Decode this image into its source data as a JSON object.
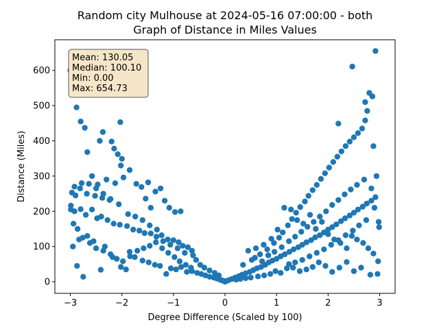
{
  "chart_data": {
    "type": "scatter",
    "title_line1": "Random city Mulhouse at 2024-05-16 07:00:00  - both",
    "title_line2": "Graph of Distance in Miles Values",
    "xlabel": "Degree Difference (Scaled by 100)",
    "ylabel": "Distance (Miles)",
    "xlim": [
      -3.3,
      3.3
    ],
    "ylim": [
      -33,
      687
    ],
    "x_ticks": [
      -3,
      -2,
      -1,
      0,
      1,
      2,
      3
    ],
    "y_ticks": [
      0,
      100,
      200,
      300,
      400,
      500,
      600
    ],
    "grid": false,
    "marker_color": "#1f77b4",
    "stats_box": {
      "location": "top-left",
      "lines": [
        "Mean: 130.05",
        "Median: 100.10",
        "Min: 0.00",
        "Max: 654.73"
      ],
      "face_color": "#f5e6c8",
      "edge_color": "#555555"
    },
    "points": [
      [
        -3.0,
        600
      ],
      [
        -2.88,
        495
      ],
      [
        -2.8,
        455
      ],
      [
        -2.72,
        437
      ],
      [
        -2.67,
        368
      ],
      [
        -2.43,
        400
      ],
      [
        -2.37,
        425
      ],
      [
        -2.2,
        398
      ],
      [
        -2.03,
        453
      ],
      [
        -2.15,
        378
      ],
      [
        -2.0,
        349
      ],
      [
        -2.02,
        330
      ],
      [
        -2.08,
        362
      ],
      [
        -1.85,
        317
      ],
      [
        -2.58,
        300
      ],
      [
        -2.47,
        276
      ],
      [
        -2.3,
        290
      ],
      [
        -2.13,
        280
      ],
      [
        -2.92,
        270
      ],
      [
        -2.81,
        265
      ],
      [
        -2.97,
        253
      ],
      [
        -2.68,
        250
      ],
      [
        -2.52,
        244
      ],
      [
        -2.38,
        238
      ],
      [
        -2.24,
        232
      ],
      [
        -1.97,
        296
      ],
      [
        -1.72,
        278
      ],
      [
        -1.62,
        269
      ],
      [
        -1.49,
        282
      ],
      [
        -1.54,
        236
      ],
      [
        -1.35,
        256
      ],
      [
        -1.25,
        265
      ],
      [
        -1.17,
        230
      ],
      [
        -1.44,
        210
      ],
      [
        -1.08,
        210
      ],
      [
        -0.97,
        198
      ],
      [
        -0.86,
        200
      ],
      [
        -2.99,
        216
      ],
      [
        -2.92,
        200
      ],
      [
        -2.8,
        206
      ],
      [
        -2.7,
        190
      ],
      [
        -2.58,
        205
      ],
      [
        -2.48,
        180
      ],
      [
        -2.4,
        185
      ],
      [
        -2.28,
        175
      ],
      [
        -2.16,
        165
      ],
      [
        -2.04,
        162
      ],
      [
        -1.9,
        158
      ],
      [
        -1.78,
        148
      ],
      [
        -1.66,
        145
      ],
      [
        -1.56,
        138
      ],
      [
        -1.44,
        137
      ],
      [
        -1.33,
        128
      ],
      [
        -1.23,
        132
      ],
      [
        -1.11,
        120
      ],
      [
        -1.0,
        118
      ],
      [
        -0.9,
        112
      ],
      [
        -0.82,
        102
      ],
      [
        -0.72,
        98
      ],
      [
        -0.64,
        88
      ],
      [
        -2.95,
        100
      ],
      [
        -2.87,
        45
      ],
      [
        -2.75,
        14
      ],
      [
        -2.83,
        120
      ],
      [
        -2.67,
        130
      ],
      [
        -2.55,
        115
      ],
      [
        -2.41,
        34
      ],
      [
        -2.33,
        100
      ],
      [
        -2.18,
        70
      ],
      [
        -2.02,
        42
      ],
      [
        -1.92,
        35
      ],
      [
        -1.85,
        85
      ],
      [
        -1.75,
        70
      ],
      [
        -1.6,
        60
      ],
      [
        -1.48,
        55
      ],
      [
        -1.36,
        48
      ],
      [
        -1.26,
        45
      ],
      [
        -1.14,
        22
      ],
      [
        -1.05,
        38
      ],
      [
        -0.95,
        35
      ],
      [
        -0.85,
        42
      ],
      [
        -0.74,
        28
      ],
      [
        -0.64,
        30
      ],
      [
        -0.54,
        25
      ],
      [
        -0.46,
        22
      ],
      [
        -0.38,
        18
      ],
      [
        -0.3,
        14
      ],
      [
        -0.22,
        12
      ],
      [
        -0.16,
        9
      ],
      [
        -0.1,
        6
      ],
      [
        -0.06,
        4
      ],
      [
        -0.02,
        2
      ],
      [
        0.0,
        0
      ],
      [
        0.03,
        2
      ],
      [
        0.08,
        5
      ],
      [
        0.14,
        8
      ],
      [
        0.2,
        12
      ],
      [
        0.27,
        16
      ],
      [
        0.33,
        20
      ],
      [
        0.4,
        24
      ],
      [
        0.48,
        28
      ],
      [
        0.55,
        33
      ],
      [
        0.62,
        38
      ],
      [
        0.7,
        42
      ],
      [
        0.78,
        48
      ],
      [
        0.85,
        55
      ],
      [
        0.92,
        60
      ],
      [
        1.0,
        65
      ],
      [
        1.08,
        72
      ],
      [
        1.16,
        78
      ],
      [
        1.25,
        85
      ],
      [
        1.33,
        92
      ],
      [
        1.42,
        98
      ],
      [
        1.5,
        105
      ],
      [
        1.58,
        112
      ],
      [
        1.67,
        118
      ],
      [
        1.75,
        126
      ],
      [
        1.84,
        132
      ],
      [
        1.92,
        140
      ],
      [
        2.0,
        148
      ],
      [
        2.08,
        155
      ],
      [
        2.16,
        163
      ],
      [
        2.25,
        172
      ],
      [
        2.33,
        180
      ],
      [
        2.42,
        188
      ],
      [
        2.5,
        196
      ],
      [
        2.58,
        205
      ],
      [
        2.67,
        213
      ],
      [
        2.75,
        222
      ],
      [
        2.84,
        230
      ],
      [
        2.92,
        240
      ],
      [
        0.35,
        48
      ],
      [
        0.52,
        62
      ],
      [
        0.68,
        78
      ],
      [
        0.82,
        92
      ],
      [
        0.95,
        110
      ],
      [
        1.05,
        125
      ],
      [
        1.12,
        140
      ],
      [
        1.22,
        160
      ],
      [
        1.3,
        178
      ],
      [
        1.38,
        196
      ],
      [
        1.46,
        212
      ],
      [
        1.55,
        228
      ],
      [
        1.62,
        244
      ],
      [
        1.7,
        260
      ],
      [
        1.78,
        275
      ],
      [
        1.86,
        292
      ],
      [
        1.94,
        308
      ],
      [
        2.02,
        324
      ],
      [
        2.1,
        340
      ],
      [
        2.18,
        355
      ],
      [
        2.26,
        370
      ],
      [
        2.34,
        385
      ],
      [
        2.42,
        398
      ],
      [
        2.5,
        410
      ],
      [
        2.58,
        422
      ],
      [
        2.66,
        435
      ],
      [
        2.72,
        458
      ],
      [
        2.76,
        485
      ],
      [
        2.8,
        536
      ],
      [
        2.86,
        526
      ],
      [
        2.92,
        655
      ],
      [
        2.47,
        611
      ],
      [
        2.72,
        510
      ],
      [
        2.2,
        449
      ],
      [
        2.88,
        385
      ],
      [
        2.94,
        300
      ],
      [
        2.98,
        170
      ],
      [
        2.99,
        155
      ],
      [
        2.97,
        58
      ],
      [
        2.96,
        22
      ],
      [
        2.82,
        20
      ],
      [
        2.64,
        40
      ],
      [
        2.5,
        30
      ],
      [
        2.36,
        56
      ],
      [
        2.22,
        40
      ],
      [
        2.08,
        28
      ],
      [
        1.95,
        45
      ],
      [
        1.82,
        55
      ],
      [
        1.7,
        42
      ],
      [
        1.58,
        35
      ],
      [
        1.45,
        30
      ],
      [
        1.32,
        40
      ],
      [
        1.2,
        38
      ],
      [
        1.08,
        25
      ],
      [
        0.98,
        30
      ],
      [
        0.88,
        22
      ],
      [
        0.76,
        18
      ],
      [
        0.64,
        15
      ],
      [
        0.5,
        12
      ],
      [
        0.4,
        10
      ],
      [
        0.3,
        8
      ],
      [
        0.22,
        6
      ],
      [
        0.6,
        95
      ],
      [
        0.75,
        105
      ],
      [
        0.9,
        122
      ],
      [
        1.02,
        148
      ],
      [
        1.15,
        210
      ],
      [
        1.28,
        205
      ],
      [
        1.4,
        175
      ],
      [
        1.52,
        165
      ],
      [
        1.65,
        190
      ],
      [
        1.76,
        150
      ],
      [
        1.88,
        170
      ],
      [
        2.0,
        135
      ],
      [
        2.12,
        120
      ],
      [
        2.24,
        110
      ],
      [
        2.36,
        95
      ],
      [
        2.46,
        130
      ],
      [
        2.56,
        120
      ],
      [
        2.68,
        110
      ],
      [
        2.78,
        95
      ],
      [
        2.88,
        80
      ],
      [
        -0.56,
        62
      ],
      [
        -0.48,
        48
      ],
      [
        -0.4,
        40
      ],
      [
        -0.3,
        32
      ],
      [
        -0.2,
        25
      ],
      [
        -0.12,
        18
      ],
      [
        -0.62,
        75
      ],
      [
        -0.78,
        82
      ],
      [
        -0.92,
        95
      ],
      [
        -1.06,
        105
      ],
      [
        -1.2,
        115
      ],
      [
        -1.32,
        148
      ],
      [
        -1.46,
        160
      ],
      [
        -1.6,
        175
      ],
      [
        -1.74,
        185
      ],
      [
        -1.88,
        192
      ],
      [
        -2.06,
        220
      ],
      [
        -2.22,
        235
      ],
      [
        -2.36,
        250
      ],
      [
        -2.5,
        265
      ],
      [
        -2.64,
        278
      ],
      [
        -2.78,
        280
      ],
      [
        -2.9,
        245
      ],
      [
        -2.99,
        205
      ],
      [
        -2.94,
        165
      ],
      [
        -2.86,
        150
      ],
      [
        -2.76,
        125
      ],
      [
        -2.62,
        110
      ],
      [
        -2.5,
        95
      ],
      [
        -2.36,
        88
      ],
      [
        -2.22,
        78
      ],
      [
        -2.1,
        65
      ],
      [
        -1.98,
        58
      ],
      [
        -1.84,
        72
      ],
      [
        -1.7,
        88
      ],
      [
        -1.58,
        95
      ],
      [
        -1.46,
        102
      ],
      [
        -1.34,
        112
      ],
      [
        -1.22,
        95
      ],
      [
        -1.1,
        82
      ],
      [
        -0.98,
        70
      ],
      [
        -0.88,
        58
      ],
      [
        -0.76,
        48
      ],
      [
        -0.66,
        40
      ],
      [
        0.45,
        88
      ],
      [
        0.58,
        68
      ],
      [
        0.72,
        58
      ],
      [
        0.84,
        75
      ],
      [
        0.96,
        85
      ],
      [
        1.1,
        98
      ],
      [
        1.24,
        115
      ],
      [
        1.36,
        128
      ],
      [
        1.48,
        142
      ],
      [
        1.6,
        156
      ],
      [
        1.72,
        170
      ],
      [
        1.84,
        185
      ],
      [
        1.96,
        200
      ],
      [
        2.08,
        218
      ],
      [
        2.2,
        232
      ],
      [
        2.32,
        248
      ],
      [
        2.44,
        262
      ],
      [
        2.56,
        275
      ],
      [
        2.7,
        290
      ],
      [
        2.84,
        265
      ],
      [
        2.9,
        210
      ],
      [
        2.74,
        175
      ],
      [
        2.6,
        160
      ],
      [
        2.48,
        145
      ],
      [
        2.34,
        132
      ],
      [
        2.2,
        118
      ],
      [
        2.06,
        105
      ],
      [
        1.92,
        92
      ],
      [
        1.78,
        82
      ],
      [
        1.64,
        72
      ],
      [
        1.5,
        62
      ],
      [
        1.36,
        55
      ],
      [
        1.24,
        50
      ]
    ]
  }
}
